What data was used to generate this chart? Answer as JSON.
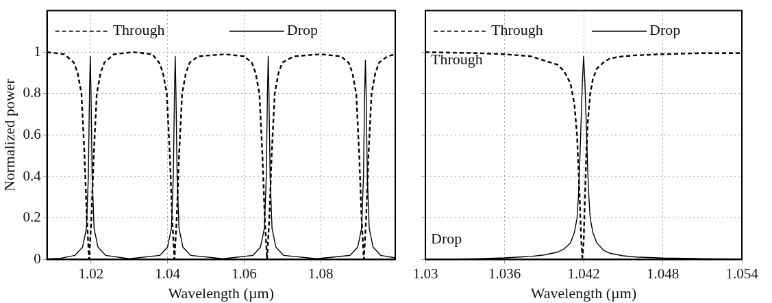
{
  "chart_data": [
    {
      "type": "line",
      "xlabel": "Wavelength (µm)",
      "ylabel": "Normalized power",
      "xlim": [
        1.0085,
        1.0995
      ],
      "ylim": [
        0,
        1.2
      ],
      "xticks": [
        1.02,
        1.04,
        1.06,
        1.08
      ],
      "yticks": [
        0,
        0.2,
        0.4,
        0.6,
        0.8,
        1
      ],
      "grid": true,
      "legend": "top",
      "marker": "none",
      "series": [
        {
          "name": "Through",
          "color": "#000000",
          "line_style": "dashed",
          "x": [
            1.0085,
            1.013,
            1.0155,
            1.0165,
            1.0175,
            1.0183,
            1.0189,
            1.0195,
            1.0201,
            1.0207,
            1.0215,
            1.0225,
            1.0235,
            1.026,
            1.031,
            1.036,
            1.0378,
            1.0388,
            1.0398,
            1.0406,
            1.0412,
            1.0418,
            1.0424,
            1.043,
            1.0438,
            1.0448,
            1.0458,
            1.048,
            1.055,
            1.06,
            1.062,
            1.063,
            1.064,
            1.0648,
            1.0654,
            1.066,
            1.0666,
            1.0672,
            1.068,
            1.069,
            1.07,
            1.073,
            1.08,
            1.0853,
            1.0873,
            1.0883,
            1.0893,
            1.0901,
            1.0907,
            1.0913,
            1.0919,
            1.0925,
            1.0933,
            1.0943,
            1.0953,
            1.0975,
            1.0995
          ],
          "values": [
            1,
            0.99,
            0.95,
            0.9,
            0.8,
            0.5,
            0.2,
            0,
            0.2,
            0.5,
            0.8,
            0.9,
            0.95,
            0.99,
            1,
            0.99,
            0.95,
            0.9,
            0.8,
            0.5,
            0.2,
            0,
            0.2,
            0.5,
            0.8,
            0.9,
            0.95,
            0.98,
            0.99,
            0.98,
            0.95,
            0.9,
            0.8,
            0.5,
            0.2,
            0,
            0.2,
            0.5,
            0.8,
            0.9,
            0.95,
            0.98,
            0.99,
            0.98,
            0.95,
            0.9,
            0.8,
            0.5,
            0.2,
            0,
            0.2,
            0.5,
            0.8,
            0.9,
            0.95,
            0.98,
            0.99
          ]
        },
        {
          "name": "Drop",
          "color": "#000000",
          "line_style": "solid",
          "x": [
            1.0085,
            1.012,
            1.0158,
            1.0178,
            1.0188,
            1.0193,
            1.0196,
            1.0198,
            1.02,
            1.0203,
            1.0208,
            1.0218,
            1.0238,
            1.03,
            1.038,
            1.04,
            1.041,
            1.0415,
            1.0418,
            1.042,
            1.0422,
            1.0425,
            1.043,
            1.044,
            1.046,
            1.0545,
            1.0623,
            1.0643,
            1.0653,
            1.0658,
            1.0661,
            1.0663,
            1.0665,
            1.0668,
            1.0673,
            1.0683,
            1.0703,
            1.079,
            1.0877,
            1.0897,
            1.0907,
            1.0912,
            1.0915,
            1.0917,
            1.0919,
            1.0922,
            1.0927,
            1.0937,
            1.0957,
            1.0995
          ],
          "values": [
            0.003,
            0.006,
            0.02,
            0.06,
            0.15,
            0.4,
            0.8,
            0.98,
            0.8,
            0.4,
            0.15,
            0.06,
            0.02,
            0.004,
            0.02,
            0.06,
            0.15,
            0.4,
            0.8,
            0.98,
            0.8,
            0.4,
            0.15,
            0.06,
            0.02,
            0.004,
            0.02,
            0.06,
            0.15,
            0.4,
            0.8,
            0.98,
            0.8,
            0.4,
            0.15,
            0.06,
            0.02,
            0.004,
            0.02,
            0.06,
            0.15,
            0.4,
            0.8,
            0.96,
            0.8,
            0.4,
            0.15,
            0.06,
            0.02,
            0.008
          ]
        }
      ]
    },
    {
      "type": "line",
      "xlabel": "Wavelength (µm)",
      "xlim": [
        1.03,
        1.054
      ],
      "ylim": [
        0,
        1.2
      ],
      "xticks": [
        1.03,
        1.036,
        1.042,
        1.048,
        1.054
      ],
      "yticks": [
        0,
        0.2,
        0.4,
        0.6,
        0.8,
        1
      ],
      "tick_labels": "x",
      "grid": true,
      "legend": "top",
      "marker": "none",
      "annotations": [
        "Through",
        "Drop"
      ],
      "series": [
        {
          "name": "Through",
          "color": "#000000",
          "line_style": "dashed",
          "x": [
            1.03,
            1.034,
            1.036,
            1.038,
            1.039,
            1.04,
            1.0405,
            1.041,
            1.0413,
            1.0415,
            1.0416,
            1.0417,
            1.0418,
            1.0419,
            1.042,
            1.0421,
            1.0422,
            1.0423,
            1.0425,
            1.0427,
            1.043,
            1.0435,
            1.044,
            1.045,
            1.046,
            1.048,
            1.051,
            1.054
          ],
          "values": [
            1,
            0.995,
            0.99,
            0.98,
            0.96,
            0.94,
            0.91,
            0.85,
            0.75,
            0.6,
            0.45,
            0.3,
            0.12,
            0.01,
            0.08,
            0.3,
            0.5,
            0.65,
            0.8,
            0.87,
            0.92,
            0.95,
            0.97,
            0.98,
            0.985,
            0.99,
            0.995,
            0.995
          ]
        },
        {
          "name": "Drop",
          "color": "#000000",
          "line_style": "solid",
          "x": [
            1.03,
            1.034,
            1.036,
            1.038,
            1.039,
            1.04,
            1.0405,
            1.041,
            1.0413,
            1.0415,
            1.0416,
            1.0417,
            1.0418,
            1.0419,
            1.042,
            1.0421,
            1.0422,
            1.0423,
            1.0424,
            1.0425,
            1.0427,
            1.043,
            1.0435,
            1.044,
            1.045,
            1.046,
            1.048,
            1.051,
            1.054
          ],
          "values": [
            0,
            0.004,
            0.008,
            0.015,
            0.022,
            0.035,
            0.05,
            0.08,
            0.13,
            0.2,
            0.3,
            0.45,
            0.65,
            0.85,
            0.98,
            0.85,
            0.65,
            0.45,
            0.3,
            0.2,
            0.13,
            0.08,
            0.045,
            0.03,
            0.018,
            0.012,
            0.007,
            0.004,
            0.002
          ]
        }
      ]
    }
  ]
}
